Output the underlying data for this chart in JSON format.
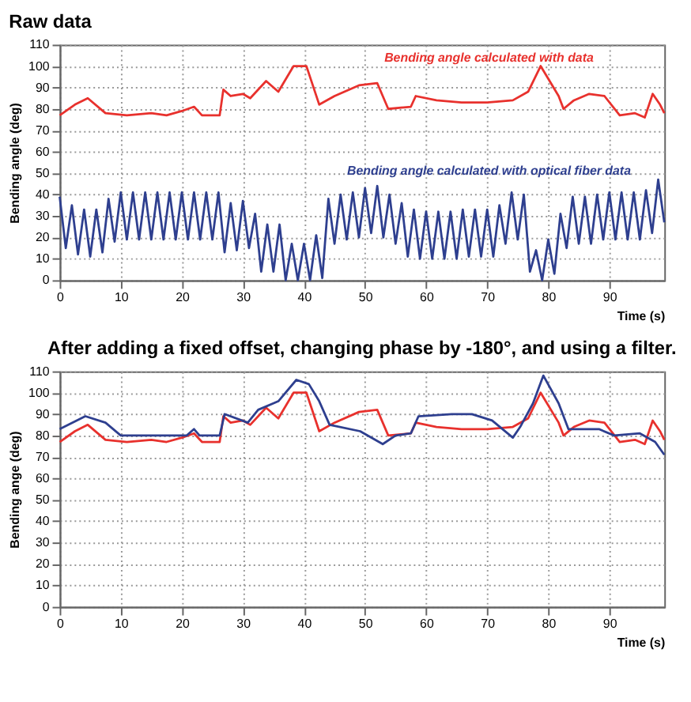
{
  "chart_data": [
    {
      "type": "line",
      "title": "Raw data",
      "xlabel": "Time (s)",
      "ylabel": "Bending angle (deg)",
      "xlim": [
        0,
        99
      ],
      "ylim": [
        0,
        110
      ],
      "xticks": [
        0,
        10,
        20,
        30,
        40,
        50,
        60,
        70,
        80,
        90
      ],
      "yticks": [
        0,
        10,
        20,
        30,
        40,
        50,
        60,
        70,
        80,
        90,
        100,
        110
      ],
      "grid": true,
      "line_style": "solid",
      "marker": "none",
      "series": [
        {
          "name": "Bending angle calculated with data",
          "color": "#e8312d",
          "x": [
            0,
            2.5,
            4.6,
            7.5,
            11,
            15,
            17.5,
            20,
            22,
            23.3,
            26.2,
            26.8,
            28,
            30,
            31.2,
            33.8,
            35.8,
            38.3,
            40.4,
            42.5,
            45,
            49,
            52,
            53.8,
            57.5,
            58.3,
            61.7,
            65.8,
            70,
            74.2,
            76.7,
            78.75,
            81.7,
            82.5,
            84.2,
            86.7,
            89.2,
            91.7,
            94.2,
            95.8,
            97.1,
            98.3,
            99
          ],
          "values": [
            77,
            82,
            85,
            78,
            77,
            78,
            77,
            79,
            81,
            77,
            77,
            89,
            86,
            87,
            85,
            93,
            88,
            100,
            100,
            82,
            86,
            91,
            92,
            80,
            81,
            86,
            84,
            83,
            83,
            84,
            88,
            100,
            86,
            80,
            84,
            87,
            86,
            77,
            78,
            76,
            87,
            82,
            78
          ]
        },
        {
          "name": "Bending angle calculated with optical fiber data",
          "color": "#2e3f8f",
          "x": [
            0,
            1,
            2,
            3,
            4,
            5,
            6,
            7,
            8,
            9,
            10,
            11,
            12,
            13,
            14,
            15,
            16,
            17,
            18,
            19,
            20,
            21,
            22,
            23,
            24,
            25,
            26,
            27,
            28,
            29,
            30,
            31,
            32,
            33,
            34,
            35,
            36,
            37,
            38,
            39,
            40,
            41,
            42,
            43,
            44,
            45,
            46,
            47,
            48,
            49,
            50,
            51,
            52,
            53,
            54,
            55,
            56,
            57,
            58,
            59,
            60,
            61,
            62,
            63,
            64,
            65,
            66,
            67,
            68,
            69,
            70,
            71,
            72,
            73,
            74,
            75,
            76,
            77,
            78,
            79,
            80,
            81,
            82,
            83,
            84,
            85,
            86,
            87,
            88,
            89,
            90,
            91,
            92,
            93,
            94,
            95,
            96,
            97,
            98,
            99
          ],
          "values": [
            39,
            15,
            35,
            12,
            33,
            11,
            33,
            13,
            38,
            18,
            41,
            19,
            41,
            19,
            41,
            19,
            41,
            19,
            41,
            19,
            41,
            19,
            41,
            19,
            41,
            19,
            41,
            13,
            36,
            14,
            37,
            15,
            31,
            4,
            26,
            4,
            26,
            0,
            17,
            0,
            17,
            0,
            21,
            1,
            38,
            17,
            40,
            19,
            41,
            20,
            43,
            22,
            44,
            20,
            40,
            17,
            36,
            11,
            33,
            10,
            32,
            10,
            32,
            10,
            32,
            10,
            33,
            11,
            33,
            11,
            33,
            11,
            35,
            17,
            41,
            19,
            40,
            4,
            14,
            0,
            19,
            3,
            31,
            15,
            39,
            17,
            39,
            17,
            40,
            19,
            41,
            19,
            41,
            19,
            41,
            19,
            42,
            22,
            47,
            27
          ]
        }
      ]
    },
    {
      "type": "line",
      "title": "After adding a fixed offset, changing phase by -180°, and using a filter.",
      "xlabel": "Time (s)",
      "ylabel": "Bending ange (deg)",
      "xlim": [
        0,
        99
      ],
      "ylim": [
        0,
        110
      ],
      "xticks": [
        0,
        10,
        20,
        30,
        40,
        50,
        60,
        70,
        80,
        90
      ],
      "yticks": [
        0,
        10,
        20,
        30,
        40,
        50,
        60,
        70,
        80,
        90,
        100,
        110
      ],
      "grid": true,
      "line_style": "solid",
      "marker": "none",
      "series": [
        {
          "color": "#e8312d",
          "x": [
            0,
            2.5,
            4.6,
            7.5,
            11,
            15,
            17.5,
            20,
            22,
            23.3,
            26.2,
            26.8,
            28,
            30,
            31.2,
            33.8,
            35.8,
            38.3,
            40.4,
            42.5,
            45,
            49,
            52,
            53.8,
            57.5,
            58.3,
            61.7,
            65.8,
            70,
            74.2,
            76.7,
            78.75,
            81.7,
            82.5,
            84.2,
            86.7,
            89.2,
            91.7,
            94.2,
            95.8,
            97.1,
            98.3,
            99
          ],
          "values": [
            77,
            82,
            85,
            78,
            77,
            78,
            77,
            79,
            81,
            77,
            77,
            89,
            86,
            87,
            85,
            93,
            88,
            100,
            100,
            82,
            86,
            91,
            92,
            80,
            81,
            86,
            84,
            83,
            83,
            84,
            88,
            100,
            86,
            80,
            84,
            87,
            86,
            77,
            78,
            76,
            87,
            82,
            78
          ]
        },
        {
          "color": "#2e3f8f",
          "x": [
            0,
            4.2,
            7.5,
            10,
            15.8,
            20.8,
            22,
            22.9,
            26.2,
            27,
            30.8,
            32.5,
            35.8,
            38.75,
            40.8,
            42.5,
            44.2,
            49.2,
            52.9,
            55,
            57.5,
            58.75,
            64.2,
            67.5,
            70.8,
            74.2,
            75.4,
            77.5,
            79.2,
            81.7,
            83.3,
            88.3,
            90.8,
            95,
            97.5,
            99
          ],
          "values": [
            83,
            89,
            86,
            80,
            80,
            80,
            83,
            80,
            80,
            90,
            86,
            92,
            96,
            106,
            104,
            96,
            85,
            82,
            76,
            80,
            81,
            89,
            90,
            90,
            87,
            79,
            84,
            95,
            108,
            95,
            83,
            83,
            80,
            81,
            77,
            71
          ]
        }
      ]
    }
  ]
}
